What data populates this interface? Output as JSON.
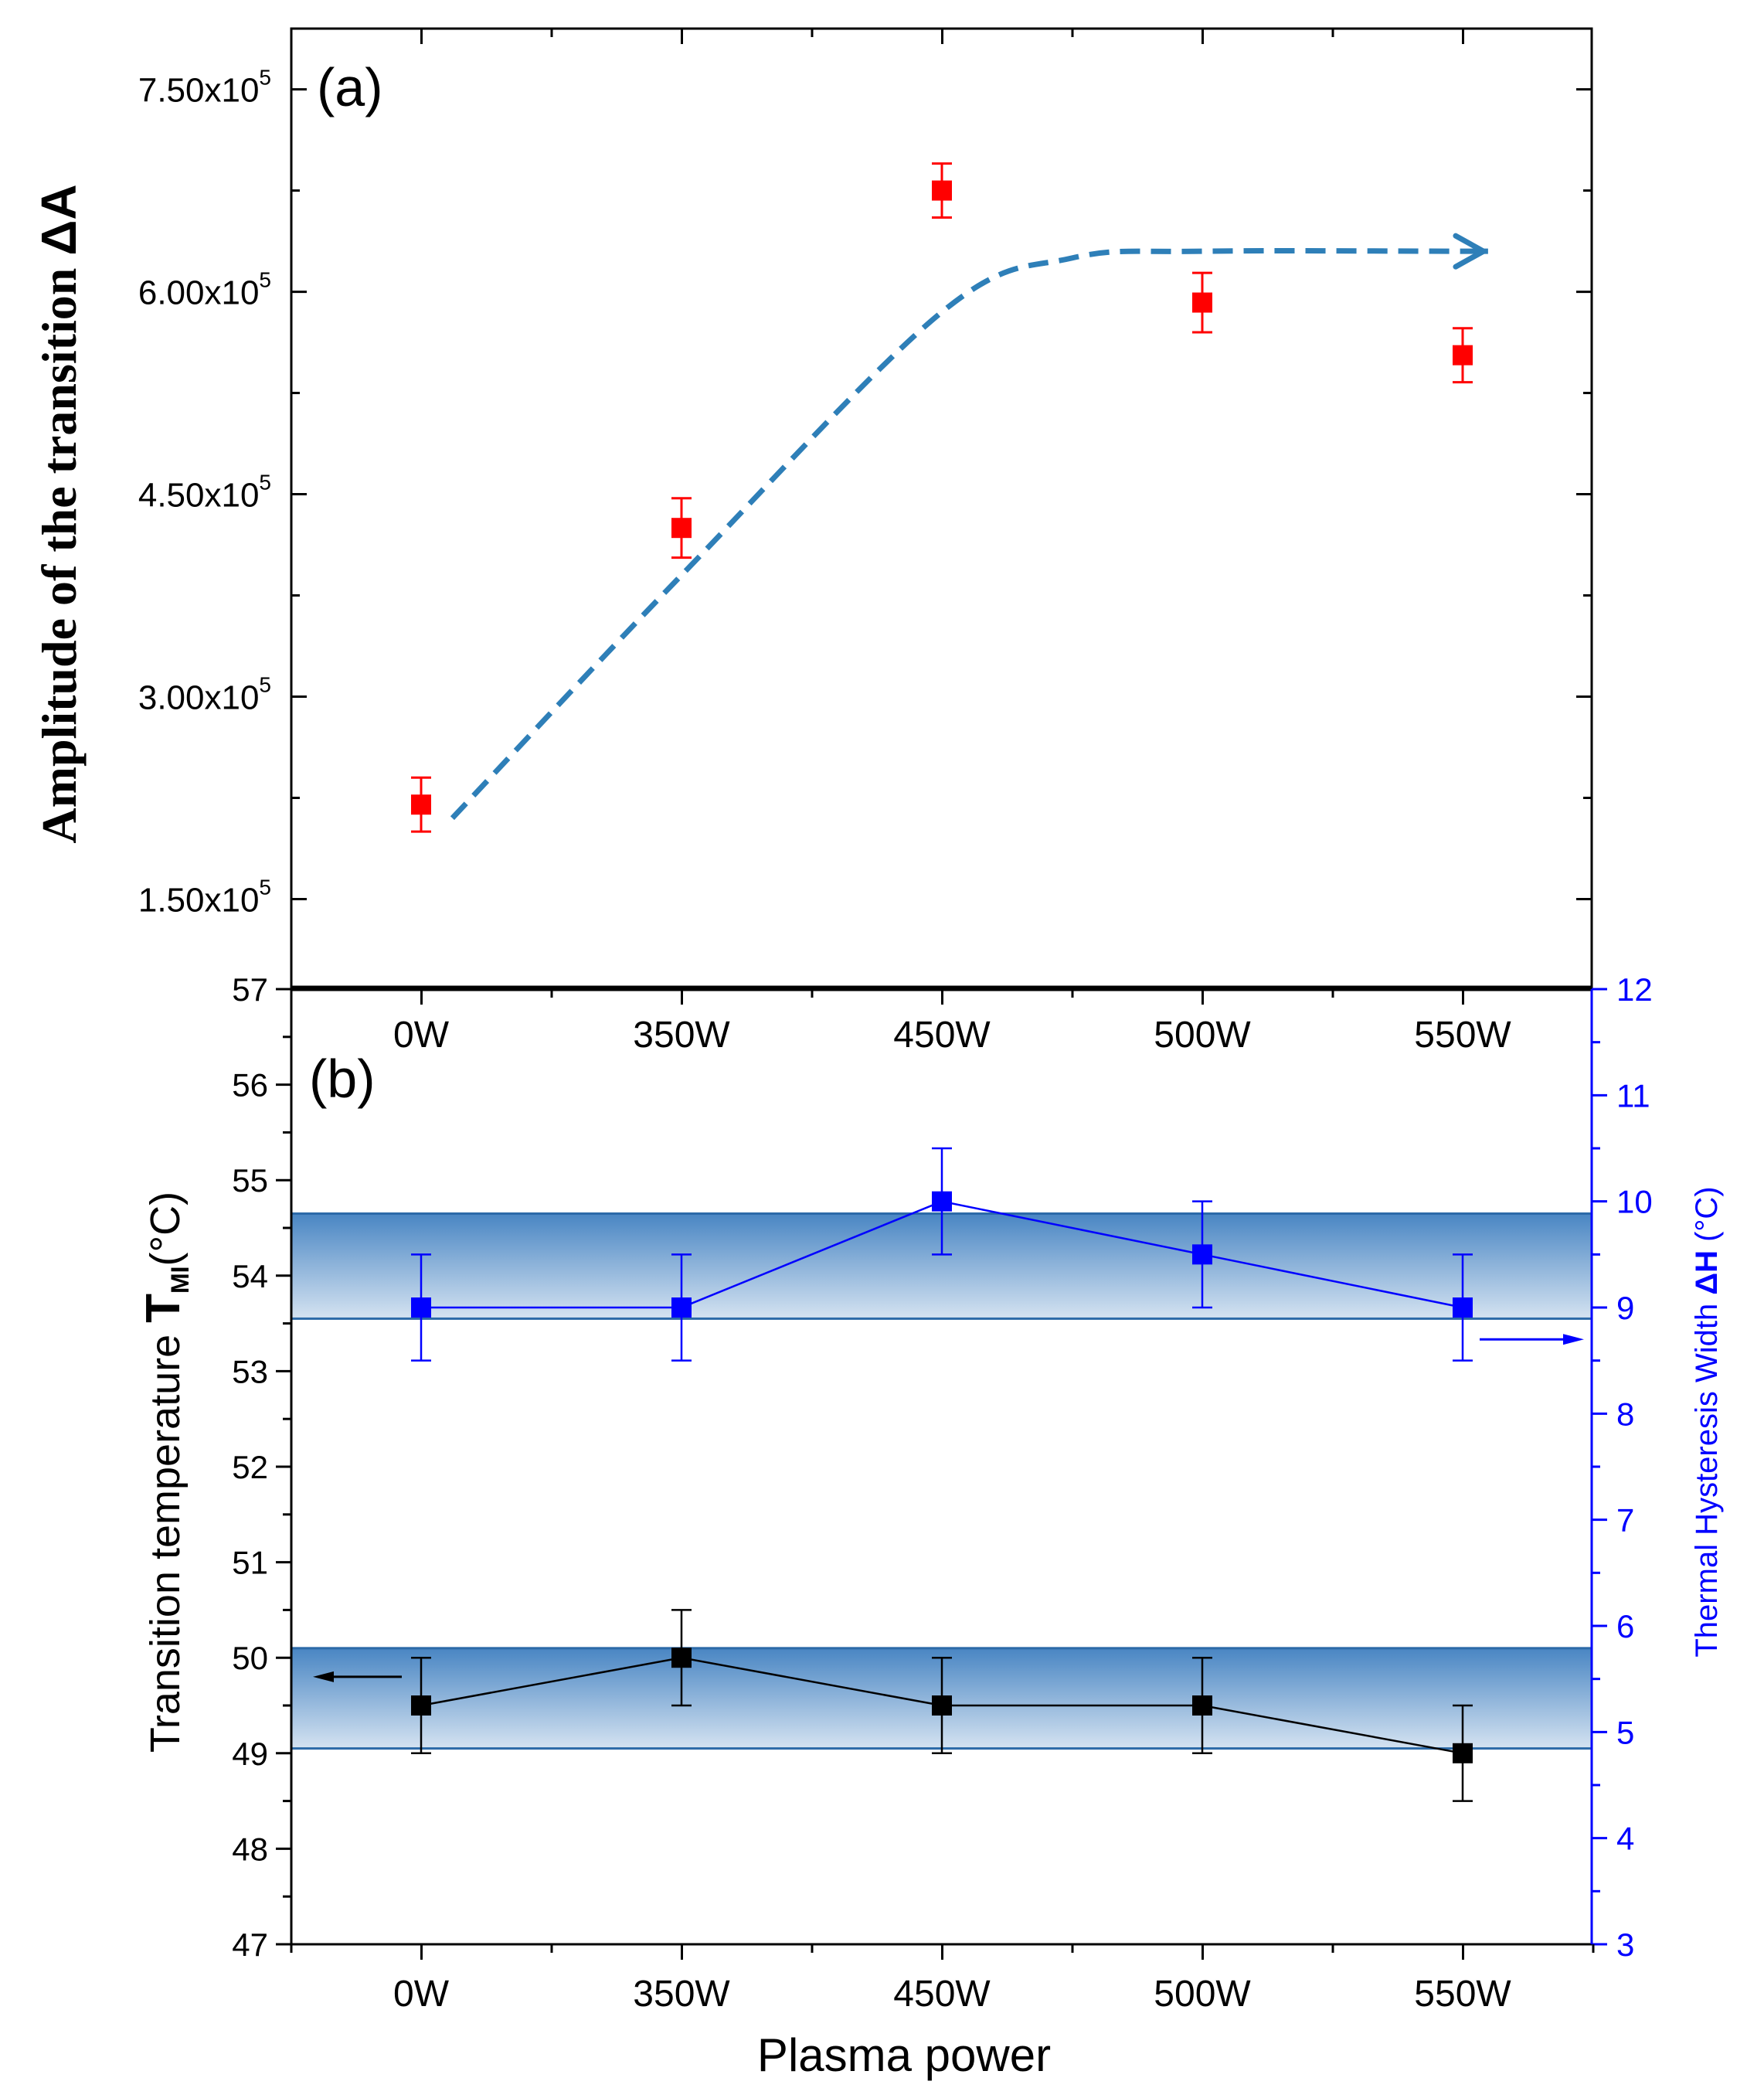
{
  "chart_data": [
    {
      "panel": "(a)",
      "type": "scatter",
      "ylabel_prefix": "Amplitude of  the transition ",
      "ylabel_symbol": "ΔA",
      "categories": [
        "0W",
        "350W",
        "450W",
        "500W",
        "550W"
      ],
      "values": [
        220000,
        425000,
        675000,
        592000,
        553000
      ],
      "errors": [
        20000,
        22000,
        20000,
        22000,
        20000
      ],
      "yticks": [
        {
          "value": 150000,
          "mantissa": "1.50x10",
          "exp": "5"
        },
        {
          "value": 300000,
          "mantissa": "3.00x10",
          "exp": "5"
        },
        {
          "value": 450000,
          "mantissa": "4.50x10",
          "exp": "5"
        },
        {
          "value": 600000,
          "mantissa": "6.00x10",
          "exp": "5"
        },
        {
          "value": 750000,
          "mantissa": "7.50x10",
          "exp": "5"
        }
      ],
      "ylim": [
        85000,
        795000
      ],
      "marker_color": "#ff0000",
      "trend": {
        "style": "dashed-arrow",
        "color": "#2e7fb8",
        "points": [
          [
            0.12,
            210000
          ],
          [
            1.0,
            390000
          ],
          [
            2.0,
            585000
          ],
          [
            2.5,
            625000
          ],
          [
            3.0,
            630000
          ],
          [
            4.0,
            630000
          ],
          [
            4.08,
            630000
          ]
        ]
      }
    },
    {
      "panel": "(b)",
      "type": "line",
      "xlabel": "Plasma power",
      "categories": [
        "0W",
        "350W",
        "450W",
        "500W",
        "550W"
      ],
      "ylabel_left_prefix": "Transition temperature ",
      "ylabel_left_T": "T",
      "ylabel_left_sub": "MI",
      "ylabel_left_suffix": "(°C)",
      "ylabel_right_prefix": "Thermal Hysteresis Width ",
      "ylabel_right_symbol": "ΔH",
      "ylabel_right_suffix": " (°C)",
      "ylim_left": [
        47,
        57
      ],
      "ylim_right": [
        3,
        12
      ],
      "yticks_left": [
        "47",
        "48",
        "49",
        "50",
        "51",
        "52",
        "53",
        "54",
        "55",
        "56",
        "57"
      ],
      "yticks_right": [
        "3",
        "4",
        "5",
        "6",
        "7",
        "8",
        "9",
        "10",
        "11",
        "12"
      ],
      "series": [
        {
          "name": "Transition temperature",
          "axis": "left",
          "color": "#000000",
          "values": [
            49.5,
            50.0,
            49.5,
            49.5,
            49.0
          ],
          "errors": [
            0.5,
            0.5,
            0.5,
            0.5,
            0.5
          ]
        },
        {
          "name": "Thermal Hysteresis Width",
          "axis": "right",
          "color": "#0000ff",
          "values": [
            9.0,
            9.0,
            10.0,
            9.5,
            9.0
          ],
          "errors": [
            0.5,
            0.5,
            0.5,
            0.5,
            0.5
          ]
        }
      ],
      "bands": [
        {
          "axis": "left",
          "range": [
            49.05,
            50.1
          ],
          "color": "#3f7fc0"
        },
        {
          "axis": "left",
          "range": [
            53.55,
            54.65
          ],
          "color": "#3f7fc0"
        }
      ],
      "axis_arrows": [
        {
          "points_to": "left",
          "color": "#000000"
        },
        {
          "points_to": "right",
          "color": "#0000ff"
        }
      ]
    }
  ]
}
